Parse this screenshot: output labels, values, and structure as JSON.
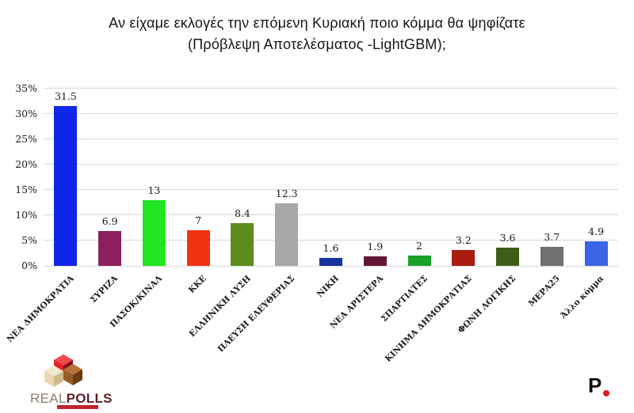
{
  "title": {
    "line1": "Αν είχαμε εκλογές την επόμενη Κυριακή ποιο κόμμα θα ψηφίζατε",
    "line2": "(Πρόβλεψη Αποτελέσματος -LightGBM);"
  },
  "chart_data": {
    "type": "bar",
    "categories": [
      "ΝΕΑ ΔΗΜΟΚΡΑΤΙΑ",
      "ΣΥΡΙΖΑ",
      "ΠΑΣΟΚ/ΚΙΝΑΛ",
      "ΚΚΕ",
      "ΕΛΛΗΝΙΚΗ ΛΥΣΗ",
      "ΠΛΕΥΣΗ ΕΛΕΥΘΕΡΙΑΣ",
      "ΝΙΚΗ",
      "ΝΕΑ ΑΡΙΣΤΕΡΑ",
      "ΣΠΑΡΤΙΑΤΕΣ",
      "ΚΙΝΗΜΑ ΔΗΜΟΚΡΑΤΙΑΣ",
      "ΦΩΝΗ ΛΟΓΙΚΗΣ",
      "ΜΕΡΑ25",
      "Άλλο κόμμα"
    ],
    "values": [
      31.5,
      6.9,
      13,
      7,
      8.4,
      12.3,
      1.6,
      1.9,
      2,
      3.2,
      3.6,
      3.7,
      4.9
    ],
    "value_labels": [
      "31.5",
      "6.9",
      "13",
      "7",
      "8.4",
      "12.3",
      "1.6",
      "1.9",
      "2",
      "3.2",
      "3.6",
      "3.7",
      "4.9"
    ],
    "bar_colors": [
      "#0f28e8",
      "#8e1f5e",
      "#21e621",
      "#f23310",
      "#5c8c1e",
      "#a8a8a8",
      "#16339e",
      "#621638",
      "#18a22c",
      "#aa1d0e",
      "#3e5e18",
      "#707070",
      "#3c64e6"
    ],
    "y_ticks": [
      "0%",
      "5%",
      "10%",
      "15%",
      "20%",
      "25%",
      "30%",
      "35%"
    ],
    "y_tick_values": [
      0,
      5,
      10,
      15,
      20,
      25,
      30,
      35
    ],
    "ylim": [
      0,
      35
    ],
    "grid": true,
    "legend": "none",
    "title": "Αν είχαμε εκλογές την επόμενη Κυριακή ποιο κόμμα θα ψηφίζατε (Πρόβλεψη Αποτελέσματος -LightGBM);",
    "xlabel": "",
    "ylabel": ""
  },
  "colors": {
    "gridline": "#d9d9d9",
    "text": "#1a1a1a",
    "background": "#ffffff"
  },
  "footer": {
    "left_logo": {
      "real": "REAL",
      "polls": "POLLS"
    },
    "right_logo": {
      "letter": "P"
    }
  }
}
